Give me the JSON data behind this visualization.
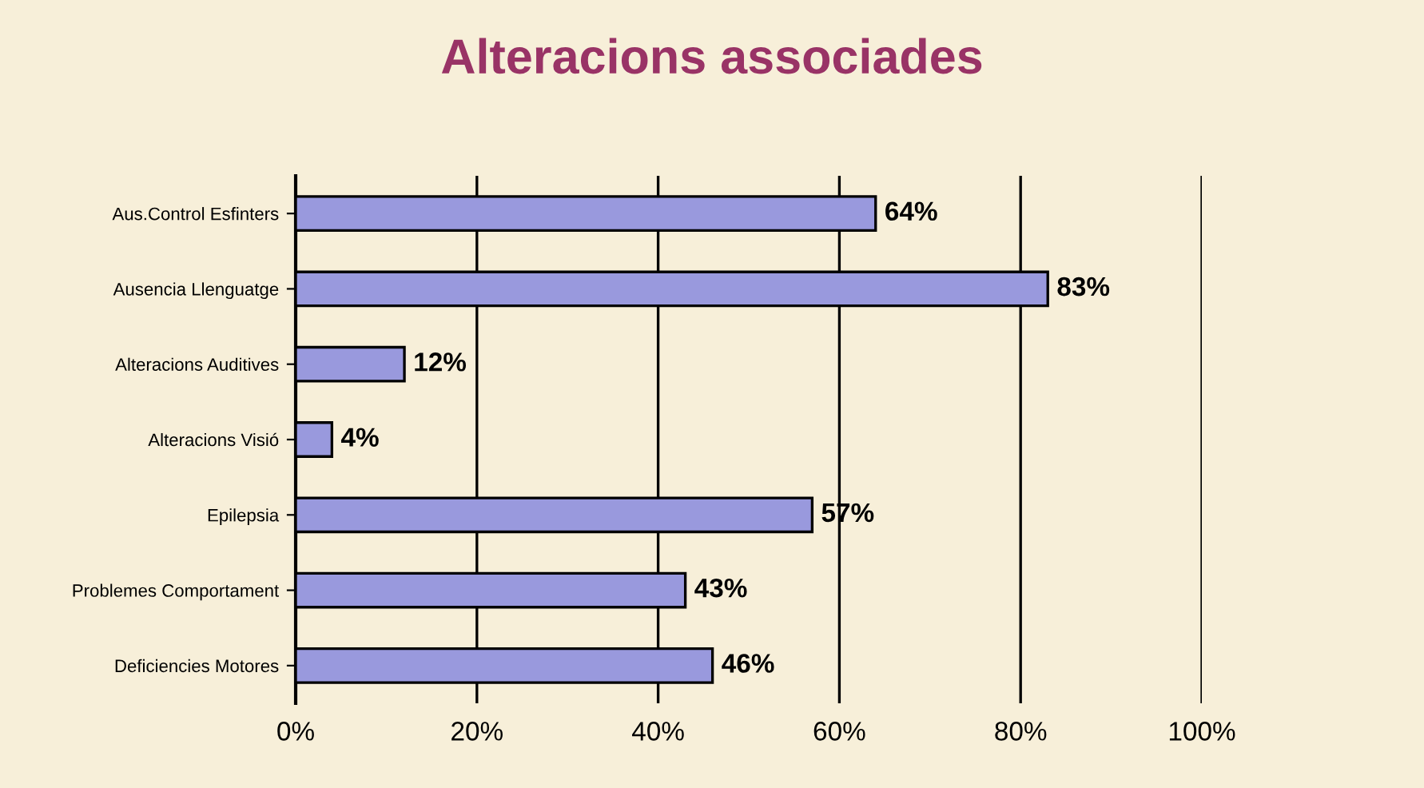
{
  "chart_data": {
    "type": "bar",
    "orientation": "horizontal",
    "title": "Alteracions associades",
    "categories": [
      "Aus.Control Esfinters",
      "Ausencia Llenguatge",
      "Alteracions Auditives",
      "Alteracions Visió",
      "Epilepsia",
      "Problemes Comportament",
      "Deficiencies Motores"
    ],
    "values": [
      64,
      83,
      12,
      4,
      57,
      43,
      46
    ],
    "value_labels": [
      "64%",
      "83%",
      "12%",
      "4%",
      "57%",
      "43%",
      "46%"
    ],
    "color": "#9999dd",
    "xlim": [
      0,
      100
    ],
    "xticks": [
      {
        "value": 0,
        "label": "0%"
      },
      {
        "value": 20,
        "label": "20%"
      },
      {
        "value": 40,
        "label": "40%"
      },
      {
        "value": 60,
        "label": "60%"
      },
      {
        "value": 80,
        "label": "80%"
      },
      {
        "value": 100,
        "label": "100%"
      }
    ],
    "grid": "x",
    "legend": false
  }
}
